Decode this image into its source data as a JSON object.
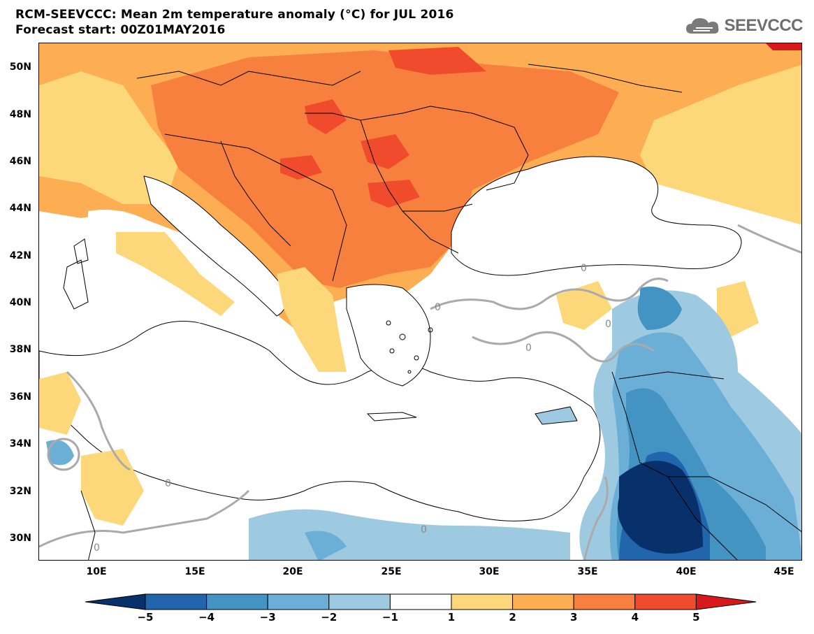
{
  "title": {
    "line1": "RCM-SEEVCCC: Mean 2m temperature anomaly (°C) for JUL 2016",
    "line2": "Forecast start: 00Z01MAY2016"
  },
  "logo": {
    "text": "SEEVCCC",
    "icon": "cloud-icon"
  },
  "map": {
    "lat_labels": [
      "50N",
      "48N",
      "46N",
      "44N",
      "42N",
      "40N",
      "38N",
      "36N",
      "34N",
      "32N",
      "30N"
    ],
    "lon_labels": [
      "10E",
      "15E",
      "20E",
      "25E",
      "30E",
      "35E",
      "40E",
      "45E"
    ],
    "contour_label": "0"
  },
  "colorbar": {
    "ticks": [
      "−5",
      "−4",
      "−3",
      "−2",
      "−1",
      "1",
      "2",
      "3",
      "4",
      "5"
    ],
    "colors": [
      "#08306b",
      "#2166ac",
      "#4393c3",
      "#6baed6",
      "#9ecae1",
      "#ffffff",
      "#fdd87a",
      "#fdae53",
      "#f8803f",
      "#f04b2c",
      "#d7191c"
    ]
  }
}
